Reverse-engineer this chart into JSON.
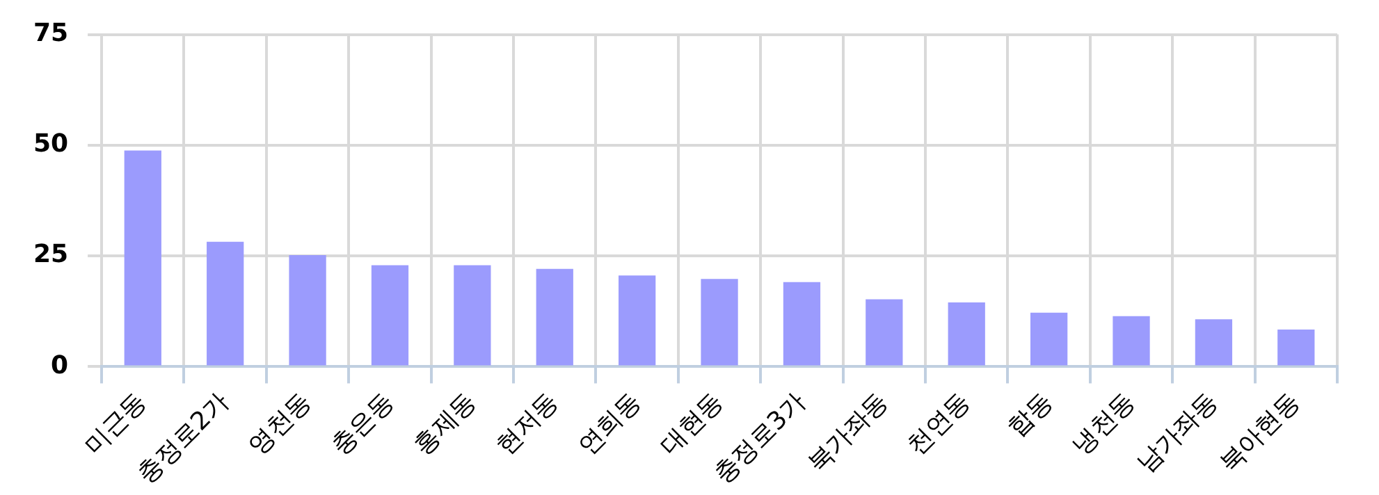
{
  "chart_data": {
    "type": "bar",
    "categories": [
      "미근동",
      "충정로2가",
      "영천동",
      "충은동",
      "홍제동",
      "현저동",
      "연희동",
      "대현동",
      "충정로3가",
      "북가좌동",
      "천연동",
      "합동",
      "냉천동",
      "남가좌동",
      "북아현동"
    ],
    "values": [
      48.8,
      28.2,
      25.2,
      22.9,
      22.9,
      22.1,
      20.6,
      19.8,
      19.1,
      15.2,
      14.5,
      12.2,
      11.4,
      10.7,
      8.4
    ],
    "color": "#9b9bfd",
    "ylim": [
      0,
      75
    ],
    "yticks": [
      0,
      25,
      50,
      75
    ],
    "grid": true
  }
}
